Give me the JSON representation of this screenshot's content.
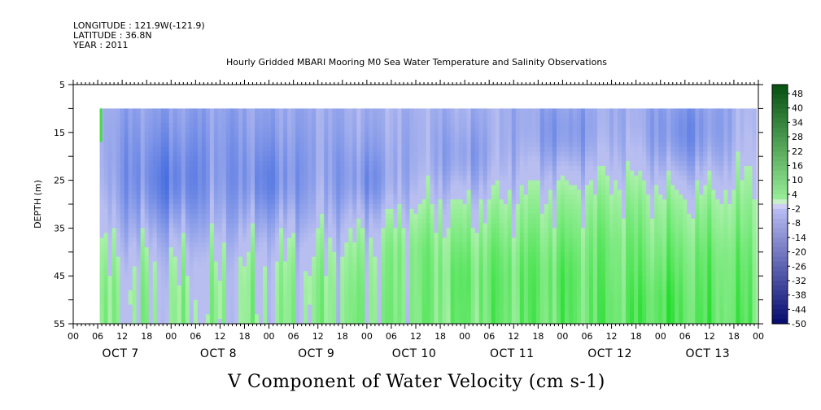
{
  "header": {
    "longitude": "LONGITUDE : 121.9W(-121.9)",
    "latitude": "LATITUDE : 36.8N",
    "year": "YEAR : 2011",
    "title": "Hourly Gridded MBARI Mooring M0 Sea Water Temperature and Salinity Observations"
  },
  "chart_data": {
    "type": "heatmap",
    "title": "V Component of Water Velocity (cm s-1)",
    "ylabel": "DEPTH (m)",
    "xlabel": "",
    "ylim": [
      55,
      5
    ],
    "y_ticks": [
      5,
      15,
      25,
      35,
      45,
      55
    ],
    "x_hours_total": 168,
    "x_tick_labels": [
      "00",
      "06",
      "12",
      "18",
      "00",
      "06",
      "12",
      "18",
      "00",
      "06",
      "12",
      "18",
      "00",
      "06",
      "12",
      "18",
      "00",
      "06",
      "12",
      "18",
      "00",
      "06",
      "12",
      "18",
      "00",
      "06",
      "12",
      "18",
      "00"
    ],
    "day_labels": [
      "OCT  7",
      "OCT  8",
      "OCT  9",
      "OCT 10",
      "OCT 11",
      "OCT 12",
      "OCT 13"
    ],
    "data_start_hour": 6.5,
    "data_top_depth": 10,
    "colorbar_labels": [
      "48",
      "40",
      "34",
      "28",
      "22",
      "16",
      "10",
      "4",
      "-2",
      "-8",
      "-14",
      "-20",
      "-26",
      "-32",
      "-38",
      "-44",
      "-50"
    ],
    "colorbar_min": -50,
    "colorbar_max": 50,
    "colors": {
      "positive": "#22cc44",
      "negative": "#3355dd",
      "neutral": "#aab4ee"
    },
    "grid": false,
    "series": [
      {
        "description_points": [
          {
            "hour": 12,
            "depth": 50,
            "value": 8
          },
          {
            "hour": 30,
            "depth": 50,
            "value": 6
          },
          {
            "hour": 44,
            "depth": 48,
            "value": 6
          },
          {
            "hour": 60,
            "depth": 48,
            "value": 8
          },
          {
            "hour": 72,
            "depth": 50,
            "value": 10
          },
          {
            "hour": 84,
            "depth": 40,
            "value": 14
          },
          {
            "hour": 96,
            "depth": 45,
            "value": 18
          },
          {
            "hour": 108,
            "depth": 45,
            "value": 18
          },
          {
            "hour": 120,
            "depth": 45,
            "value": 20
          },
          {
            "hour": 132,
            "depth": 40,
            "value": 16
          },
          {
            "hour": 144,
            "depth": 50,
            "value": 22
          },
          {
            "hour": 156,
            "depth": 45,
            "value": 16
          },
          {
            "hour": 165,
            "depth": 50,
            "value": 14
          },
          {
            "hour": 24,
            "depth": 25,
            "value": -20
          },
          {
            "hour": 48,
            "depth": 25,
            "value": -18
          },
          {
            "hour": 72,
            "depth": 25,
            "value": -16
          },
          {
            "hour": 96,
            "depth": 20,
            "value": -12
          },
          {
            "hour": 120,
            "depth": 15,
            "value": -14
          },
          {
            "hour": 150,
            "depth": 15,
            "value": -16
          }
        ]
      }
    ]
  }
}
